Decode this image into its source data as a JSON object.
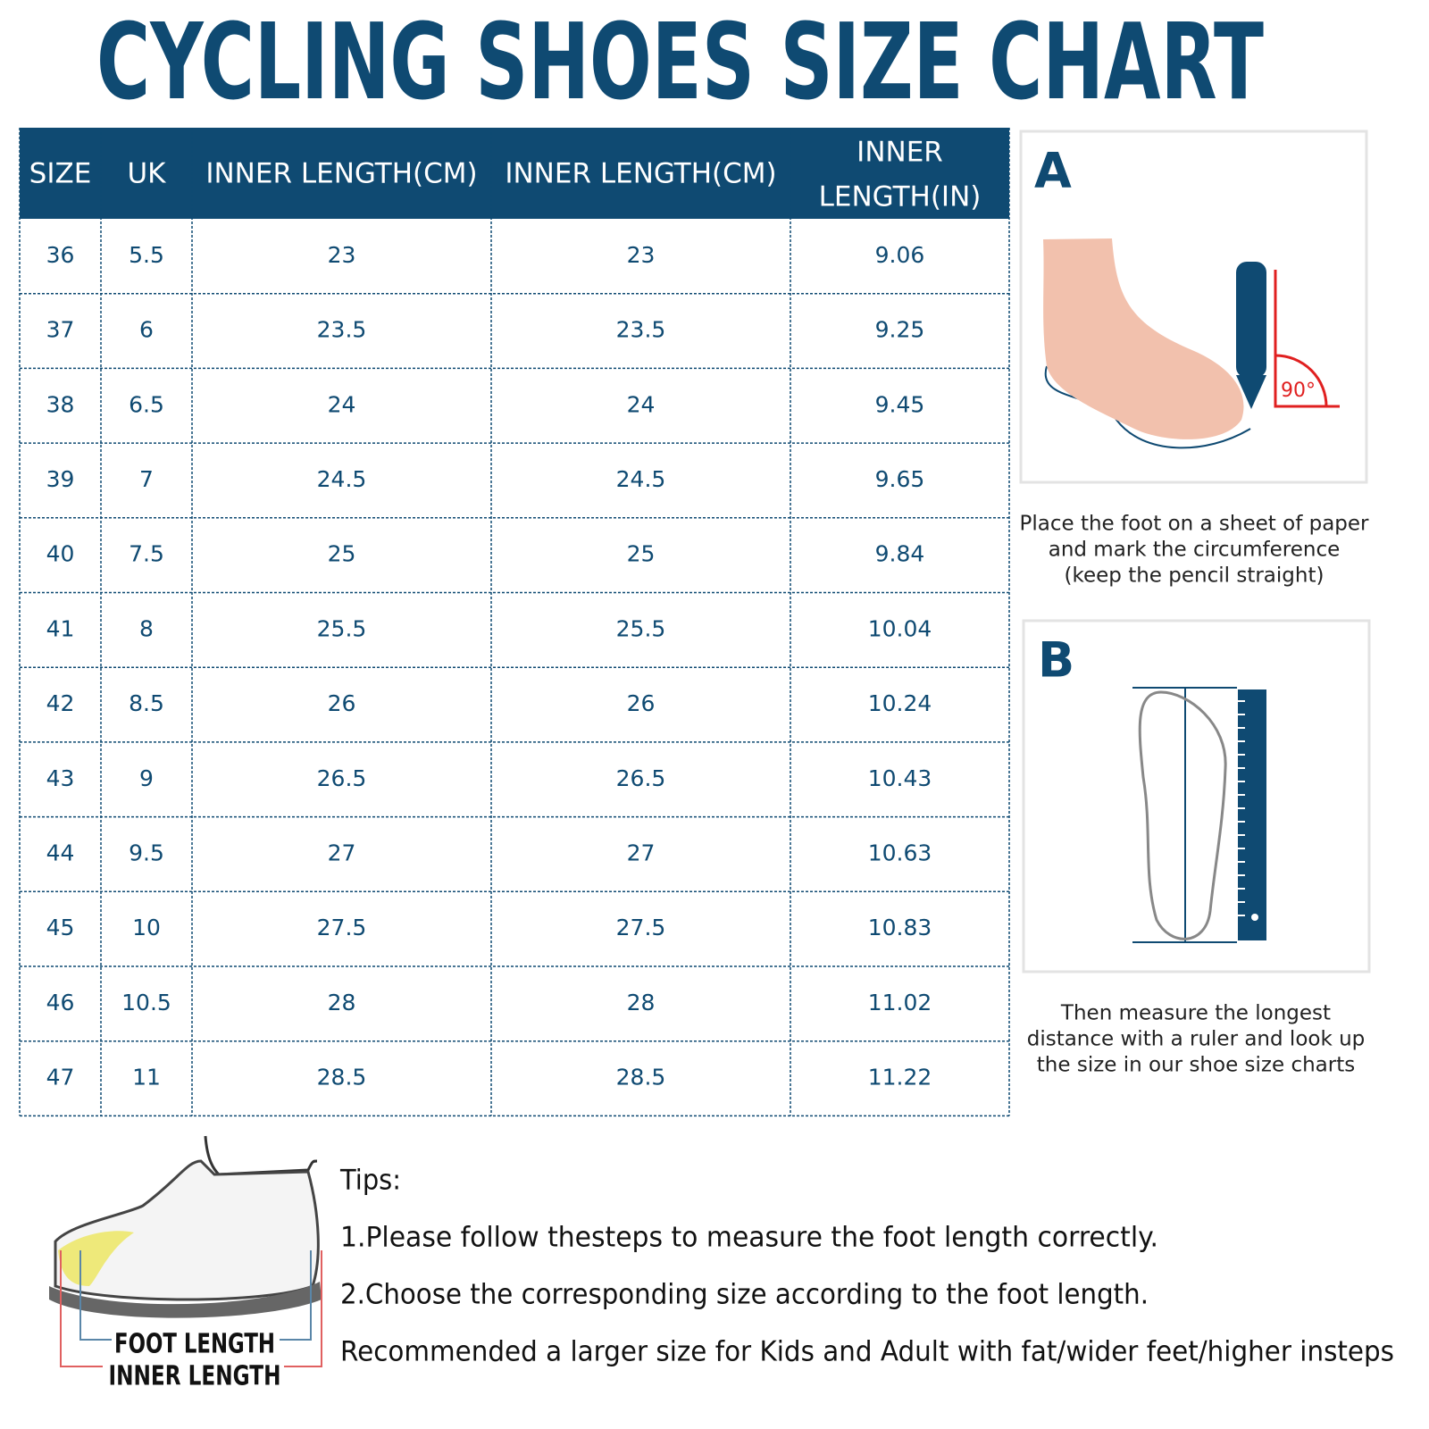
{
  "title": "CYCLING  SHOES SIZE CHART",
  "table": {
    "headers": [
      "SIZE",
      "UK",
      "INNER LENGTH(CM)",
      "INNER LENGTH(CM)",
      [
        "INNER",
        "LENGTH(IN)"
      ]
    ],
    "rows": [
      [
        "36",
        "5.5",
        "23",
        "23",
        "9.06"
      ],
      [
        "37",
        "6",
        "23.5",
        "23.5",
        "9.25"
      ],
      [
        "38",
        "6.5",
        "24",
        "24",
        "9.45"
      ],
      [
        "39",
        "7",
        "24.5",
        "24.5",
        "9.65"
      ],
      [
        "40",
        "7.5",
        "25",
        "25",
        "9.84"
      ],
      [
        "41",
        "8",
        "25.5",
        "25.5",
        "10.04"
      ],
      [
        "42",
        "8.5",
        "26",
        "26",
        "10.24"
      ],
      [
        "43",
        "9",
        "26.5",
        "26.5",
        "10.43"
      ],
      [
        "44",
        "9.5",
        "27",
        "27",
        "10.63"
      ],
      [
        "45",
        "10",
        "27.5",
        "27.5",
        "10.83"
      ],
      [
        "46",
        "10.5",
        "28",
        "28",
        "11.02"
      ],
      [
        "47",
        "11",
        "28.5",
        "28.5",
        "11.22"
      ]
    ]
  },
  "panel_a": {
    "label": "A",
    "angle": "90°",
    "caption": [
      "Place the foot on a sheet of paper",
      "and mark the circumference",
      "(keep the pencil straight)"
    ]
  },
  "panel_b": {
    "label": "B",
    "caption": [
      "Then measure the longest",
      "distance with a ruler and look up",
      "the size in our shoe size charts"
    ]
  },
  "shoe": {
    "foot_length": "FOOT LENGTH",
    "inner_length": "INNER LENGTH"
  },
  "tips": [
    "Tips:",
    "1.Please follow thesteps to measure the foot length correctly.",
    "2.Choose the corresponding size according to the foot length.",
    "Recommended a larger size for Kids and Adult with fat/wider feet/higher insteps"
  ]
}
